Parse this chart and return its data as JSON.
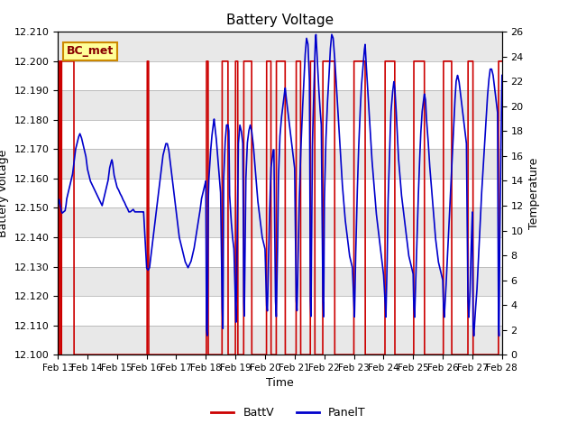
{
  "title": "Battery Voltage",
  "xlabel": "Time",
  "ylabel_left": "Battery Voltage",
  "ylabel_right": "Temperature",
  "xlim": [
    0,
    15
  ],
  "ylim_left": [
    12.1,
    12.21
  ],
  "ylim_right": [
    0,
    26
  ],
  "yticks_left": [
    12.1,
    12.11,
    12.12,
    12.13,
    12.14,
    12.15,
    12.16,
    12.17,
    12.18,
    12.19,
    12.2,
    12.21
  ],
  "yticks_right": [
    0,
    2,
    4,
    6,
    8,
    10,
    12,
    14,
    16,
    18,
    20,
    22,
    24,
    26
  ],
  "xtick_labels": [
    "Feb 13",
    "Feb 14",
    "Feb 15",
    "Feb 16",
    "Feb 17",
    "Feb 18",
    "Feb 19",
    "Feb 20",
    "Feb 21",
    "Feb 22",
    "Feb 23",
    "Feb 24",
    "Feb 25",
    "Feb 26",
    "Feb 27",
    "Feb 28"
  ],
  "xtick_positions": [
    0,
    1,
    2,
    3,
    4,
    5,
    6,
    7,
    8,
    9,
    10,
    11,
    12,
    13,
    14,
    15
  ],
  "batt_color": "#cc0000",
  "panel_color": "#0000cc",
  "background_color": "#ffffff",
  "band_colors": [
    "#e8e8e8",
    "#ffffff"
  ],
  "annotation_text": "BC_met",
  "annotation_bg": "#ffff99",
  "annotation_border": "#cc8800",
  "legend_battv": "BattV",
  "legend_panelt": "PanelT",
  "batt_high_segments": [
    [
      0.05,
      0.1
    ],
    [
      0.13,
      0.55
    ],
    [
      3.02,
      3.07
    ],
    [
      5.02,
      5.08
    ],
    [
      5.55,
      5.75
    ],
    [
      6.0,
      6.08
    ],
    [
      6.28,
      6.55
    ],
    [
      7.05,
      7.2
    ],
    [
      7.38,
      7.68
    ],
    [
      8.05,
      8.2
    ],
    [
      8.53,
      8.68
    ],
    [
      8.95,
      9.35
    ],
    [
      10.0,
      10.38
    ],
    [
      11.05,
      11.38
    ],
    [
      12.02,
      12.38
    ],
    [
      13.02,
      13.3
    ],
    [
      13.85,
      14.02
    ],
    [
      14.88,
      15.0
    ]
  ],
  "panel_t_data": [
    [
      0.0,
      12.0
    ],
    [
      0.05,
      12.5
    ],
    [
      0.08,
      12.0
    ],
    [
      0.1,
      11.8
    ],
    [
      0.12,
      11.6
    ],
    [
      0.15,
      11.4
    ],
    [
      0.2,
      11.5
    ],
    [
      0.25,
      11.6
    ],
    [
      0.28,
      12.0
    ],
    [
      0.3,
      12.5
    ],
    [
      0.35,
      13.0
    ],
    [
      0.4,
      13.5
    ],
    [
      0.45,
      14.0
    ],
    [
      0.5,
      14.5
    ],
    [
      0.55,
      15.5
    ],
    [
      0.6,
      16.5
    ],
    [
      0.65,
      17.0
    ],
    [
      0.7,
      17.5
    ],
    [
      0.75,
      17.8
    ],
    [
      0.8,
      17.5
    ],
    [
      0.85,
      17.0
    ],
    [
      0.9,
      16.5
    ],
    [
      0.95,
      16.0
    ],
    [
      1.0,
      15.0
    ],
    [
      1.1,
      14.0
    ],
    [
      1.2,
      13.5
    ],
    [
      1.3,
      13.0
    ],
    [
      1.4,
      12.5
    ],
    [
      1.5,
      12.0
    ],
    [
      1.6,
      13.0
    ],
    [
      1.65,
      13.5
    ],
    [
      1.7,
      14.0
    ],
    [
      1.75,
      15.0
    ],
    [
      1.8,
      15.5
    ],
    [
      1.83,
      15.7
    ],
    [
      1.85,
      15.5
    ],
    [
      1.9,
      14.5
    ],
    [
      1.95,
      14.0
    ],
    [
      2.0,
      13.5
    ],
    [
      2.05,
      13.3
    ],
    [
      2.1,
      13.0
    ],
    [
      2.15,
      12.8
    ],
    [
      2.2,
      12.5
    ],
    [
      2.25,
      12.3
    ],
    [
      2.3,
      12.0
    ],
    [
      2.35,
      11.8
    ],
    [
      2.4,
      11.5
    ],
    [
      2.45,
      11.5
    ],
    [
      2.5,
      11.6
    ],
    [
      2.55,
      11.7
    ],
    [
      2.6,
      11.5
    ],
    [
      2.65,
      11.5
    ],
    [
      2.7,
      11.5
    ],
    [
      2.75,
      11.5
    ],
    [
      2.8,
      11.5
    ],
    [
      2.9,
      11.5
    ],
    [
      3.0,
      7.0
    ],
    [
      3.05,
      6.8
    ],
    [
      3.1,
      7.0
    ],
    [
      3.15,
      8.0
    ],
    [
      3.2,
      9.0
    ],
    [
      3.25,
      10.0
    ],
    [
      3.3,
      11.0
    ],
    [
      3.35,
      12.0
    ],
    [
      3.4,
      13.0
    ],
    [
      3.45,
      14.0
    ],
    [
      3.5,
      15.0
    ],
    [
      3.55,
      16.0
    ],
    [
      3.6,
      16.5
    ],
    [
      3.65,
      17.0
    ],
    [
      3.7,
      17.0
    ],
    [
      3.75,
      16.5
    ],
    [
      3.8,
      15.5
    ],
    [
      3.85,
      14.5
    ],
    [
      3.9,
      13.5
    ],
    [
      3.95,
      12.5
    ],
    [
      4.0,
      11.5
    ],
    [
      4.05,
      10.5
    ],
    [
      4.1,
      9.5
    ],
    [
      4.2,
      8.5
    ],
    [
      4.3,
      7.5
    ],
    [
      4.4,
      7.0
    ],
    [
      4.5,
      7.5
    ],
    [
      4.6,
      8.5
    ],
    [
      4.7,
      10.0
    ],
    [
      4.8,
      11.5
    ],
    [
      4.85,
      12.5
    ],
    [
      4.9,
      13.0
    ],
    [
      4.95,
      13.5
    ],
    [
      5.0,
      14.0
    ],
    [
      5.02,
      2.0
    ],
    [
      5.05,
      1.5
    ],
    [
      5.08,
      12.0
    ],
    [
      5.1,
      14.0
    ],
    [
      5.15,
      16.0
    ],
    [
      5.2,
      17.5
    ],
    [
      5.25,
      18.5
    ],
    [
      5.28,
      19.0
    ],
    [
      5.3,
      18.5
    ],
    [
      5.35,
      17.5
    ],
    [
      5.4,
      16.0
    ],
    [
      5.45,
      14.5
    ],
    [
      5.5,
      13.0
    ],
    [
      5.55,
      4.0
    ],
    [
      5.58,
      2.0
    ],
    [
      5.6,
      14.0
    ],
    [
      5.65,
      17.0
    ],
    [
      5.7,
      18.5
    ],
    [
      5.75,
      18.5
    ],
    [
      5.78,
      18.0
    ],
    [
      5.8,
      13.0
    ],
    [
      5.85,
      11.0
    ],
    [
      5.9,
      9.5
    ],
    [
      5.95,
      8.5
    ],
    [
      6.0,
      4.0
    ],
    [
      6.02,
      2.5
    ],
    [
      6.05,
      8.0
    ],
    [
      6.08,
      14.0
    ],
    [
      6.1,
      17.0
    ],
    [
      6.15,
      18.5
    ],
    [
      6.2,
      18.0
    ],
    [
      6.25,
      17.0
    ],
    [
      6.28,
      4.5
    ],
    [
      6.3,
      3.0
    ],
    [
      6.35,
      14.0
    ],
    [
      6.4,
      17.0
    ],
    [
      6.45,
      18.0
    ],
    [
      6.5,
      18.5
    ],
    [
      6.55,
      18.0
    ],
    [
      6.6,
      17.0
    ],
    [
      6.65,
      15.5
    ],
    [
      6.7,
      14.0
    ],
    [
      6.75,
      12.5
    ],
    [
      6.8,
      11.5
    ],
    [
      6.85,
      10.5
    ],
    [
      6.9,
      9.5
    ],
    [
      6.95,
      9.0
    ],
    [
      7.0,
      8.5
    ],
    [
      7.05,
      4.0
    ],
    [
      7.08,
      3.5
    ],
    [
      7.12,
      8.0
    ],
    [
      7.15,
      11.0
    ],
    [
      7.18,
      13.5
    ],
    [
      7.2,
      15.0
    ],
    [
      7.25,
      16.0
    ],
    [
      7.28,
      16.5
    ],
    [
      7.3,
      16.5
    ],
    [
      7.35,
      4.5
    ],
    [
      7.38,
      3.0
    ],
    [
      7.42,
      8.0
    ],
    [
      7.45,
      14.0
    ],
    [
      7.5,
      17.5
    ],
    [
      7.55,
      19.0
    ],
    [
      7.6,
      20.0
    ],
    [
      7.65,
      21.0
    ],
    [
      7.68,
      21.5
    ],
    [
      7.7,
      21.0
    ],
    [
      7.75,
      20.0
    ],
    [
      7.8,
      19.0
    ],
    [
      7.85,
      18.0
    ],
    [
      7.9,
      17.0
    ],
    [
      7.95,
      16.0
    ],
    [
      8.0,
      15.0
    ],
    [
      8.05,
      4.5
    ],
    [
      8.08,
      3.5
    ],
    [
      8.12,
      8.0
    ],
    [
      8.15,
      12.0
    ],
    [
      8.2,
      16.0
    ],
    [
      8.25,
      19.0
    ],
    [
      8.3,
      21.5
    ],
    [
      8.35,
      24.0
    ],
    [
      8.4,
      25.5
    ],
    [
      8.45,
      25.0
    ],
    [
      8.5,
      22.0
    ],
    [
      8.53,
      4.5
    ],
    [
      8.55,
      3.0
    ],
    [
      8.58,
      12.0
    ],
    [
      8.6,
      17.0
    ],
    [
      8.65,
      21.5
    ],
    [
      8.7,
      25.5
    ],
    [
      8.72,
      25.8
    ],
    [
      8.75,
      24.5
    ],
    [
      8.8,
      22.0
    ],
    [
      8.85,
      20.0
    ],
    [
      8.9,
      18.5
    ],
    [
      8.95,
      4.5
    ],
    [
      8.98,
      3.0
    ],
    [
      9.0,
      12.0
    ],
    [
      9.05,
      17.0
    ],
    [
      9.1,
      20.0
    ],
    [
      9.15,
      22.0
    ],
    [
      9.2,
      24.5
    ],
    [
      9.25,
      25.8
    ],
    [
      9.3,
      25.5
    ],
    [
      9.35,
      24.0
    ],
    [
      9.4,
      22.0
    ],
    [
      9.45,
      20.0
    ],
    [
      9.5,
      18.0
    ],
    [
      9.55,
      16.0
    ],
    [
      9.6,
      14.0
    ],
    [
      9.65,
      12.5
    ],
    [
      9.7,
      11.0
    ],
    [
      9.75,
      10.0
    ],
    [
      9.8,
      9.0
    ],
    [
      9.85,
      8.0
    ],
    [
      9.9,
      7.5
    ],
    [
      9.95,
      7.0
    ],
    [
      10.0,
      4.0
    ],
    [
      10.02,
      3.0
    ],
    [
      10.05,
      7.0
    ],
    [
      10.1,
      12.0
    ],
    [
      10.15,
      16.0
    ],
    [
      10.2,
      19.0
    ],
    [
      10.25,
      21.5
    ],
    [
      10.3,
      23.0
    ],
    [
      10.35,
      24.5
    ],
    [
      10.38,
      25.0
    ],
    [
      10.4,
      24.0
    ],
    [
      10.45,
      22.0
    ],
    [
      10.5,
      20.0
    ],
    [
      10.55,
      18.0
    ],
    [
      10.6,
      16.0
    ],
    [
      10.65,
      14.5
    ],
    [
      10.7,
      13.0
    ],
    [
      10.75,
      11.5
    ],
    [
      10.8,
      10.5
    ],
    [
      10.85,
      9.5
    ],
    [
      10.9,
      8.5
    ],
    [
      10.95,
      7.5
    ],
    [
      11.0,
      6.5
    ],
    [
      11.05,
      4.5
    ],
    [
      11.08,
      3.0
    ],
    [
      11.12,
      7.0
    ],
    [
      11.15,
      12.0
    ],
    [
      11.2,
      16.0
    ],
    [
      11.25,
      19.5
    ],
    [
      11.3,
      21.0
    ],
    [
      11.35,
      22.0
    ],
    [
      11.38,
      21.5
    ],
    [
      11.42,
      20.0
    ],
    [
      11.45,
      18.5
    ],
    [
      11.48,
      17.0
    ],
    [
      11.5,
      16.0
    ],
    [
      11.55,
      14.5
    ],
    [
      11.6,
      13.0
    ],
    [
      11.65,
      12.0
    ],
    [
      11.7,
      11.0
    ],
    [
      11.75,
      10.0
    ],
    [
      11.8,
      9.0
    ],
    [
      11.85,
      8.0
    ],
    [
      11.9,
      7.5
    ],
    [
      11.95,
      7.0
    ],
    [
      12.0,
      6.5
    ],
    [
      12.02,
      4.0
    ],
    [
      12.05,
      3.0
    ],
    [
      12.1,
      7.0
    ],
    [
      12.15,
      11.0
    ],
    [
      12.2,
      14.5
    ],
    [
      12.25,
      17.5
    ],
    [
      12.3,
      19.5
    ],
    [
      12.35,
      20.5
    ],
    [
      12.38,
      21.0
    ],
    [
      12.42,
      20.5
    ],
    [
      12.45,
      19.0
    ],
    [
      12.5,
      17.5
    ],
    [
      12.55,
      15.5
    ],
    [
      12.6,
      14.0
    ],
    [
      12.65,
      12.5
    ],
    [
      12.7,
      11.0
    ],
    [
      12.75,
      9.5
    ],
    [
      12.8,
      8.5
    ],
    [
      12.85,
      7.5
    ],
    [
      12.9,
      7.0
    ],
    [
      12.95,
      6.5
    ],
    [
      13.0,
      6.0
    ],
    [
      13.02,
      4.0
    ],
    [
      13.05,
      3.0
    ],
    [
      13.1,
      5.0
    ],
    [
      13.15,
      7.5
    ],
    [
      13.2,
      10.0
    ],
    [
      13.25,
      12.5
    ],
    [
      13.3,
      15.0
    ],
    [
      13.35,
      17.5
    ],
    [
      13.4,
      20.0
    ],
    [
      13.45,
      22.0
    ],
    [
      13.5,
      22.5
    ],
    [
      13.55,
      22.0
    ],
    [
      13.6,
      21.0
    ],
    [
      13.65,
      20.0
    ],
    [
      13.7,
      19.0
    ],
    [
      13.75,
      18.0
    ],
    [
      13.8,
      17.0
    ],
    [
      13.85,
      4.5
    ],
    [
      13.88,
      3.0
    ],
    [
      13.92,
      5.0
    ],
    [
      13.95,
      8.0
    ],
    [
      14.0,
      11.5
    ],
    [
      14.02,
      2.5
    ],
    [
      14.05,
      1.5
    ],
    [
      14.1,
      3.5
    ],
    [
      14.15,
      5.0
    ],
    [
      14.2,
      7.5
    ],
    [
      14.25,
      10.0
    ],
    [
      14.3,
      12.5
    ],
    [
      14.35,
      14.5
    ],
    [
      14.4,
      16.5
    ],
    [
      14.45,
      18.5
    ],
    [
      14.5,
      20.5
    ],
    [
      14.55,
      22.0
    ],
    [
      14.6,
      23.0
    ],
    [
      14.65,
      23.0
    ],
    [
      14.7,
      22.5
    ],
    [
      14.75,
      21.5
    ],
    [
      14.8,
      20.5
    ],
    [
      14.85,
      19.5
    ],
    [
      14.88,
      2.5
    ],
    [
      14.9,
      1.5
    ],
    [
      14.92,
      8.5
    ],
    [
      14.95,
      14.5
    ],
    [
      15.0,
      22.5
    ]
  ]
}
